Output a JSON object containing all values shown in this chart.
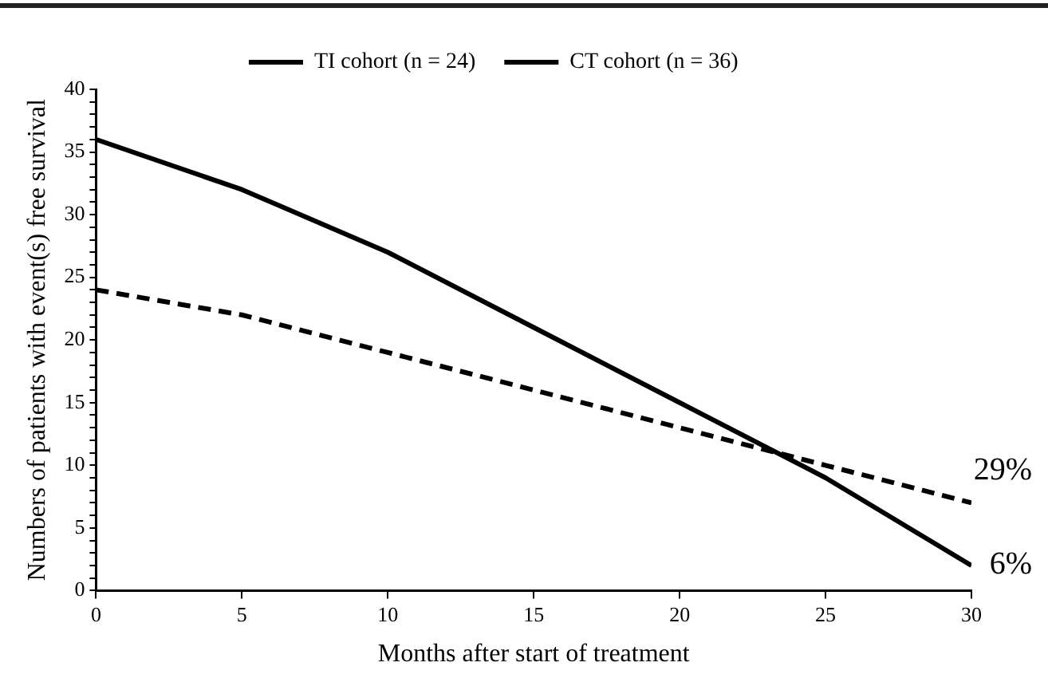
{
  "chart_data": {
    "type": "line",
    "xlabel": "Months after start of treatment",
    "ylabel": "Numbers of patients with event(s) free survival",
    "x": [
      0,
      5,
      10,
      15,
      20,
      25,
      30
    ],
    "series": [
      {
        "name": "TI cohort (n = 24)",
        "color": "#000000",
        "line_style": "dashed",
        "values": [
          24,
          22,
          19,
          16,
          13,
          10,
          7
        ]
      },
      {
        "name": "CT cohort (n = 36)",
        "color": "#000000",
        "line_style": "solid",
        "values": [
          36,
          32,
          27,
          21,
          15,
          9,
          2
        ]
      }
    ],
    "xlim": [
      0,
      30
    ],
    "xticks": [
      0,
      5,
      10,
      15,
      20,
      25,
      30
    ],
    "ylim": [
      0,
      40
    ],
    "yticks": [
      0,
      {
        "value": 1,
        "label": null
      },
      {
        "value": 2,
        "label": null
      },
      {
        "value": 3,
        "label": null
      },
      {
        "value": 4,
        "label": null
      },
      5,
      {
        "value": 6,
        "label": null
      },
      {
        "value": 7,
        "label": null
      },
      {
        "value": 8,
        "label": null
      },
      {
        "value": 9,
        "label": null
      },
      10,
      {
        "value": 11,
        "label": null
      },
      {
        "value": 12,
        "label": null
      },
      {
        "value": 13,
        "label": null
      },
      {
        "value": 14,
        "label": null
      },
      15,
      {
        "value": 16,
        "label": null
      },
      {
        "value": 17,
        "label": null
      },
      {
        "value": 18,
        "label": null
      },
      {
        "value": 19,
        "label": null
      },
      20,
      {
        "value": 21,
        "label": null
      },
      {
        "value": 22,
        "label": null
      },
      {
        "value": 23,
        "label": null
      },
      {
        "value": 24,
        "label": null
      },
      25,
      {
        "value": 26,
        "label": null
      },
      {
        "value": 27,
        "label": null
      },
      {
        "value": 28,
        "label": null
      },
      {
        "value": 29,
        "label": null
      },
      30,
      {
        "value": 31,
        "label": null
      },
      {
        "value": 32,
        "label": null
      },
      {
        "value": 33,
        "label": null
      },
      {
        "value": 34,
        "label": null
      },
      35,
      {
        "value": 36,
        "label": null
      },
      {
        "value": 37,
        "label": null
      },
      {
        "value": 38,
        "label": null
      },
      {
        "value": 39,
        "label": null
      },
      40
    ],
    "annotations": [
      {
        "text": "29%",
        "x": 30,
        "y": 7
      },
      {
        "text": "6%",
        "x": 30,
        "y": 2
      }
    ],
    "grid": false,
    "legend": "top",
    "marker": "none"
  }
}
